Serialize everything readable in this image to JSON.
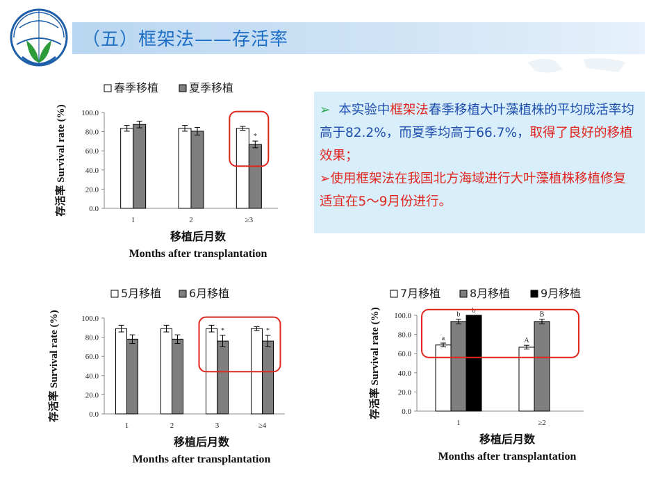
{
  "title": "（五）框架法——存活率",
  "callout": {
    "bullet1_marker": "➢",
    "bullet1_pre": "本实验中",
    "bullet1_hl": "框架法",
    "bullet1_post": "春季移植大叶藻植株的平均成活率均高于82.2%，而夏季均高于66.7%，",
    "bullet1_tail": "取得了良好的移植效果；",
    "bullet2_marker": "➢",
    "bullet2_text": "使用框架法在我国北方海域进行大叶藻植株移植修复适宜在5～9月份进行。"
  },
  "colors": {
    "title_text": "#1f6fc5",
    "title_bar": "#c4ddf4",
    "callout_bg": "#d9eefb",
    "callout_text": "#1f4fae",
    "highlight": "#e0261e",
    "bar_white": "#ffffff",
    "bar_gray": "#7f7f7f",
    "bar_black": "#000000",
    "red_box": "#e0261e"
  },
  "chart_data": [
    {
      "type": "bar",
      "ylabel": "存活率 Survival rate (%)",
      "xlabel_cn": "移植后月数",
      "xlabel_en": "Months after transplantation",
      "ylim": [
        0,
        100
      ],
      "yticks": [
        "0.0",
        "20.0",
        "40.0",
        "60.0",
        "80.0",
        "100.0"
      ],
      "categories": [
        "1",
        "2",
        "≥3"
      ],
      "series": [
        {
          "name": "春季移植",
          "style": "white",
          "values": [
            83.5,
            83.5,
            83.5
          ],
          "err": [
            3.0,
            3.0,
            2.0
          ],
          "labels": [
            "",
            "",
            ""
          ]
        },
        {
          "name": "夏季移植",
          "style": "gray",
          "values": [
            87.5,
            80.5,
            66.7
          ],
          "err": [
            3.5,
            4.0,
            3.5
          ],
          "labels": [
            "",
            "",
            "*"
          ]
        }
      ],
      "highlight_category": 2
    },
    {
      "type": "bar",
      "ylabel": "存活率 Survival rate (%)",
      "xlabel_cn": "移植后月数",
      "xlabel_en": "Months after transplantation",
      "ylim": [
        0,
        100
      ],
      "yticks": [
        "0.0",
        "20.0",
        "40.0",
        "60.0",
        "80.0",
        "100.0"
      ],
      "categories": [
        "1",
        "2",
        "3",
        "≥4"
      ],
      "series": [
        {
          "name": "5月移植",
          "style": "white",
          "values": [
            89.0,
            89.0,
            89.0,
            89.0
          ],
          "err": [
            3.5,
            3.5,
            3.5,
            2.0
          ],
          "labels": [
            "",
            "",
            "",
            ""
          ]
        },
        {
          "name": "6月移植",
          "style": "gray",
          "values": [
            78.0,
            78.0,
            76.0,
            76.0
          ],
          "err": [
            4.5,
            4.5,
            6.0,
            6.0
          ],
          "labels": [
            "",
            "",
            "*",
            "*"
          ]
        }
      ],
      "highlight_category": [
        2,
        3
      ]
    },
    {
      "type": "bar",
      "ylabel": "存活率 Survival rate (%)",
      "xlabel_cn": "移植后月数",
      "xlabel_en": "Months after transplantation",
      "ylim": [
        0,
        100
      ],
      "yticks": [
        "0.0",
        "20.0",
        "40.0",
        "60.0",
        "80.0",
        "100.0"
      ],
      "categories": [
        "1",
        "≥2"
      ],
      "series": [
        {
          "name": "7月移植",
          "style": "white",
          "values": [
            69.0,
            66.7
          ],
          "err": [
            2.0,
            2.0
          ],
          "labels": [
            "a",
            "A"
          ]
        },
        {
          "name": "8月移植",
          "style": "gray",
          "values": [
            93.5,
            93.5
          ],
          "err": [
            2.5,
            2.5
          ],
          "labels": [
            "b",
            "B"
          ]
        },
        {
          "name": "9月移植",
          "style": "black",
          "values": [
            100.0,
            null
          ],
          "err": [
            0,
            0
          ],
          "labels": [
            "b",
            ""
          ]
        }
      ],
      "highlight_category": "top"
    }
  ]
}
